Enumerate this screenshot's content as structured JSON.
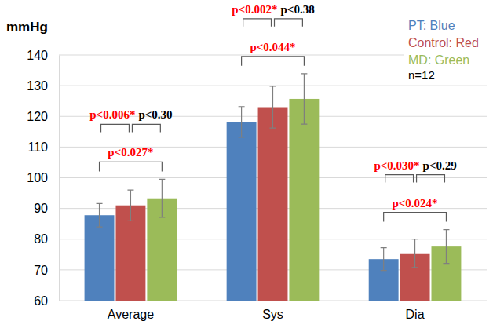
{
  "chart_data": {
    "type": "bar",
    "y_label": "mmHg",
    "categories": [
      "Average",
      "Sys",
      "Dia"
    ],
    "series": [
      {
        "name": "PT: Blue",
        "color": "#4f81bd",
        "values": [
          87.8,
          118.2,
          73.5
        ],
        "errors": [
          3.8,
          5.0,
          3.7
        ]
      },
      {
        "name": "Control: Red",
        "color": "#c0504d",
        "values": [
          91.0,
          123.0,
          75.4
        ],
        "errors": [
          5.0,
          6.8,
          4.6
        ]
      },
      {
        "name": "MD: Green",
        "color": "#9bbb59",
        "values": [
          93.3,
          125.7,
          77.6
        ],
        "errors": [
          6.2,
          8.2,
          5.5
        ]
      }
    ],
    "ylim": [
      60,
      140
    ],
    "yticks": [
      60,
      70,
      80,
      90,
      100,
      110,
      120,
      130,
      140
    ],
    "grid": true,
    "legend": "upper right",
    "note": "n=12",
    "annotations": [
      {
        "text": "p<0.006*",
        "category": 0,
        "between": [
          0,
          1
        ],
        "color": "#ff0000"
      },
      {
        "text": "p<0.30",
        "category": 0,
        "between": [
          1,
          2
        ],
        "color": "#000000"
      },
      {
        "text": "p<0.027*",
        "category": 0,
        "between": [
          0,
          2
        ],
        "color": "#ff0000"
      },
      {
        "text": "p<0.002*",
        "category": 1,
        "between": [
          0,
          1
        ],
        "color": "#ff0000"
      },
      {
        "text": "p<0.38",
        "category": 1,
        "between": [
          1,
          2
        ],
        "color": "#000000"
      },
      {
        "text": "p<0.044*",
        "category": 1,
        "between": [
          0,
          2
        ],
        "color": "#ff0000"
      },
      {
        "text": "p<0.030*",
        "category": 2,
        "between": [
          0,
          1
        ],
        "color": "#ff0000"
      },
      {
        "text": "p<0.29",
        "category": 2,
        "between": [
          1,
          2
        ],
        "color": "#000000"
      },
      {
        "text": "p<0.024*",
        "category": 2,
        "between": [
          0,
          2
        ],
        "color": "#ff0000"
      }
    ]
  }
}
